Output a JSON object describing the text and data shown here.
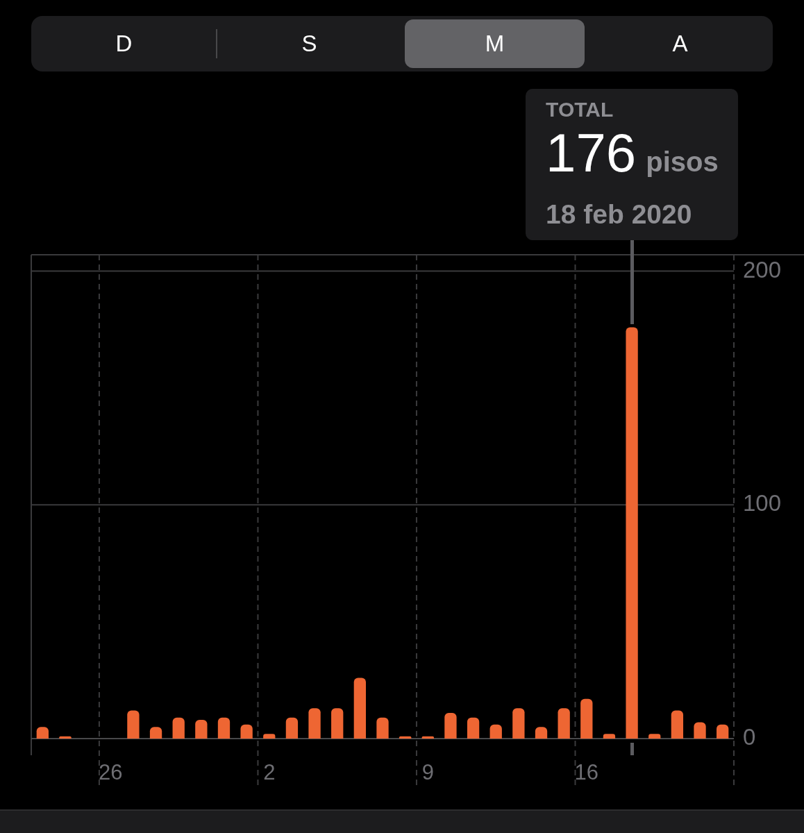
{
  "chart_data": {
    "type": "bar",
    "annotations": [
      "D",
      "S",
      "M",
      "A",
      {
        "text": "TOTAL\n176 pisos\n18 feb 2020",
        "y": 176
      }
    ],
    "categories": [
      null,
      null,
      null,
      "26",
      null,
      null,
      null,
      null,
      null,
      null,
      "2",
      null,
      null,
      null,
      null,
      null,
      null,
      "9",
      null,
      null,
      null,
      null,
      null,
      null,
      "16",
      null,
      null,
      null,
      null,
      null,
      null
    ],
    "values": [
      5,
      1,
      0,
      0,
      12,
      5,
      9,
      8,
      9,
      6,
      2,
      9,
      13,
      13,
      26,
      9,
      1,
      1,
      11,
      9,
      6,
      13,
      5,
      13,
      17,
      2,
      176,
      2,
      12,
      7,
      6
    ],
    "color": "#ee6633",
    "ylim": [
      0,
      207
    ],
    "yticks": [
      0,
      100,
      200
    ],
    "grid": true
  }
}
